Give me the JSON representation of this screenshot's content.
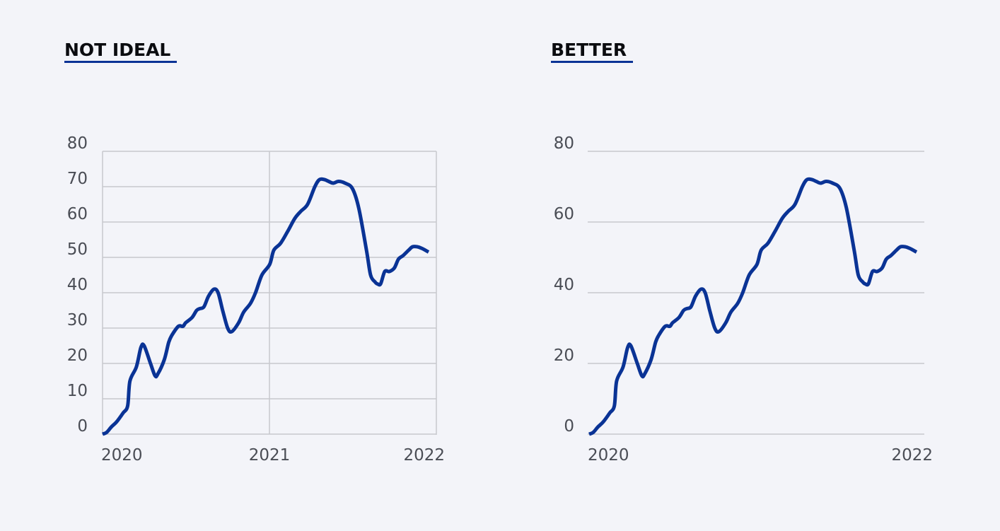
{
  "colors": {
    "background": "#f3f4f9",
    "line": "#0a3395",
    "grid": "#c7c8ce",
    "frame": "#c7c8ce",
    "title_underline": "#0a3395",
    "text": "#4a4d55"
  },
  "panels": [
    {
      "title": "NOT IDEAL"
    },
    {
      "title": "BETTER"
    }
  ],
  "chart_data": [
    {
      "type": "line",
      "title": "NOT IDEAL",
      "xlabel": "",
      "ylabel": "",
      "ylim": [
        0,
        80
      ],
      "xlim": [
        "2020-01-01",
        "2022-01-01"
      ],
      "yticks": [
        0,
        10,
        20,
        30,
        40,
        50,
        60,
        70,
        80
      ],
      "xticks": [
        "2020",
        "2021",
        "2022"
      ],
      "grid": "horizontal every 10, vertical at 2021",
      "frame": "left, right and bottom axis lines",
      "series": [
        {
          "x": [
            "2020-01-01",
            "2020-01-10",
            "2020-01-20",
            "2020-02-01",
            "2020-02-15",
            "2020-02-25",
            "2020-03-01",
            "2020-03-15",
            "2020-03-25",
            "2020-04-01",
            "2020-04-15",
            "2020-04-25",
            "2020-05-01",
            "2020-05-15",
            "2020-05-25",
            "2020-06-01",
            "2020-06-15",
            "2020-06-25",
            "2020-07-01",
            "2020-07-15",
            "2020-07-25",
            "2020-08-01",
            "2020-08-10",
            "2020-08-20",
            "2020-09-01",
            "2020-09-10",
            "2020-09-20",
            "2020-10-01",
            "2020-10-10",
            "2020-10-25",
            "2020-11-05",
            "2020-11-20",
            "2020-12-01",
            "2020-12-15",
            "2021-01-01",
            "2021-01-10",
            "2021-01-25",
            "2021-02-10",
            "2021-02-25",
            "2021-03-10",
            "2021-03-25",
            "2021-04-10",
            "2021-04-20",
            "2021-05-01",
            "2021-05-10",
            "2021-05-20",
            "2021-06-01",
            "2021-06-15",
            "2021-07-01",
            "2021-07-15",
            "2021-08-01",
            "2021-08-10",
            "2021-08-20",
            "2021-08-25",
            "2021-09-01",
            "2021-09-10",
            "2021-09-20",
            "2021-10-01",
            "2021-10-10",
            "2021-10-20",
            "2021-11-01",
            "2021-11-10",
            "2021-11-20",
            "2021-12-01",
            "2021-12-15"
          ],
          "values": [
            0,
            0.5,
            2,
            3.5,
            6,
            8,
            15,
            19,
            24.5,
            25,
            20,
            16.5,
            17,
            21,
            26,
            28,
            30.5,
            30.5,
            31.5,
            33,
            35,
            35.5,
            36,
            39,
            41,
            40,
            35,
            30,
            29,
            31.5,
            34.5,
            37,
            40,
            45,
            48,
            52,
            54,
            57.5,
            61,
            63,
            65,
            70,
            72,
            72,
            71.5,
            71,
            71.5,
            71,
            69.5,
            64,
            52,
            45,
            43,
            42.5,
            42.5,
            46,
            46,
            47,
            49.5,
            50.5,
            52,
            53,
            53,
            52.5,
            51.5
          ]
        }
      ]
    },
    {
      "type": "line",
      "title": "BETTER",
      "xlabel": "",
      "ylabel": "",
      "ylim": [
        0,
        80
      ],
      "xlim": [
        "2020-01-01",
        "2022-01-01"
      ],
      "yticks": [
        0,
        20,
        40,
        60,
        80
      ],
      "xticks": [
        "2020",
        "2022"
      ],
      "grid": "horizontal every 20, no vertical gridlines",
      "frame": "no axis lines; horizontal gridlines only",
      "series": [
        {
          "x": [
            "2020-01-01",
            "2020-01-10",
            "2020-01-20",
            "2020-02-01",
            "2020-02-15",
            "2020-02-25",
            "2020-03-01",
            "2020-03-15",
            "2020-03-25",
            "2020-04-01",
            "2020-04-15",
            "2020-04-25",
            "2020-05-01",
            "2020-05-15",
            "2020-05-25",
            "2020-06-01",
            "2020-06-15",
            "2020-06-25",
            "2020-07-01",
            "2020-07-15",
            "2020-07-25",
            "2020-08-01",
            "2020-08-10",
            "2020-08-20",
            "2020-09-01",
            "2020-09-10",
            "2020-09-20",
            "2020-10-01",
            "2020-10-10",
            "2020-10-25",
            "2020-11-05",
            "2020-11-20",
            "2020-12-01",
            "2020-12-15",
            "2021-01-01",
            "2021-01-10",
            "2021-01-25",
            "2021-02-10",
            "2021-02-25",
            "2021-03-10",
            "2021-03-25",
            "2021-04-10",
            "2021-04-20",
            "2021-05-01",
            "2021-05-10",
            "2021-05-20",
            "2021-06-01",
            "2021-06-15",
            "2021-07-01",
            "2021-07-15",
            "2021-08-01",
            "2021-08-10",
            "2021-08-20",
            "2021-08-25",
            "2021-09-01",
            "2021-09-10",
            "2021-09-20",
            "2021-10-01",
            "2021-10-10",
            "2021-10-20",
            "2021-11-01",
            "2021-11-10",
            "2021-11-20",
            "2021-12-01",
            "2021-12-15"
          ],
          "values": [
            0,
            0.5,
            2,
            3.5,
            6,
            8,
            15,
            19,
            24.5,
            25,
            20,
            16.5,
            17,
            21,
            26,
            28,
            30.5,
            30.5,
            31.5,
            33,
            35,
            35.5,
            36,
            39,
            41,
            40,
            35,
            30,
            29,
            31.5,
            34.5,
            37,
            40,
            45,
            48,
            52,
            54,
            57.5,
            61,
            63,
            65,
            70,
            72,
            72,
            71.5,
            71,
            71.5,
            71,
            69.5,
            64,
            52,
            45,
            43,
            42.5,
            42.5,
            46,
            46,
            47,
            49.5,
            50.5,
            52,
            53,
            53,
            52.5,
            51.5
          ]
        }
      ]
    }
  ]
}
